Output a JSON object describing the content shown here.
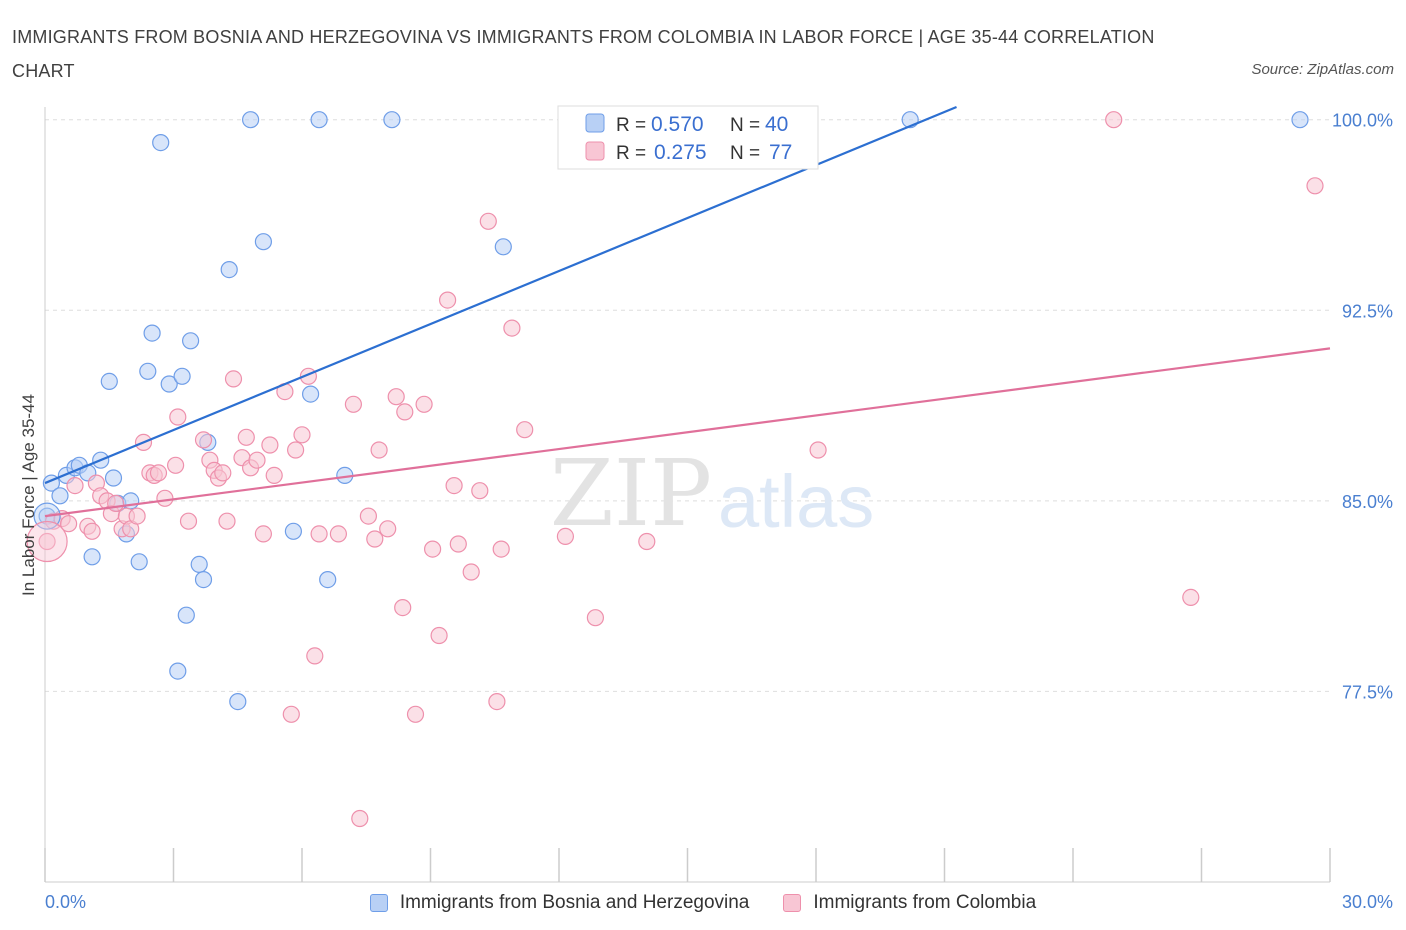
{
  "title": "IMMIGRANTS FROM BOSNIA AND HERZEGOVINA VS IMMIGRANTS FROM COLOMBIA IN LABOR FORCE | AGE 35-44 CORRELATION CHART",
  "source": "Source: ZipAtlas.com",
  "watermark": {
    "zip": "ZIP",
    "atlas": "atlas"
  },
  "legend": {
    "rows": [
      {
        "r_label": "R = ",
        "r_value": "0.570",
        "n_label": "N = ",
        "n_value": "40"
      },
      {
        "r_label": "R = ",
        "r_value": "0.275",
        "n_label": "N = ",
        "n_value": "77"
      }
    ]
  },
  "chart_data": {
    "type": "scatter",
    "title": "IMMIGRANTS FROM BOSNIA AND HERZEGOVINA VS IMMIGRANTS FROM COLOMBIA IN LABOR FORCE | AGE 35-44 CORRELATION CHART",
    "xlabel": "",
    "ylabel": "In Labor Force | Age 35-44",
    "xlim": [
      0,
      30
    ],
    "ylim": [
      70,
      100.5
    ],
    "x_tick_labels": [
      "0.0%",
      "30.0%"
    ],
    "y_ticks": [
      77.5,
      85.0,
      92.5,
      100.0
    ],
    "y_tick_labels": [
      "77.5%",
      "85.0%",
      "92.5%",
      "100.0%"
    ],
    "grid": true,
    "legend_position": "bottom",
    "series": [
      {
        "name": "Immigrants from Bosnia and Herzegovina",
        "color": "#6f9ee8",
        "fill": "#b8d0f5",
        "trendline": {
          "x": [
            0.0,
            22.0
          ],
          "y": [
            85.7,
            101.0
          ],
          "color": "#2c6fd1"
        },
        "points": [
          [
            0.05,
            84.4
          ],
          [
            0.15,
            85.7
          ],
          [
            0.35,
            85.2
          ],
          [
            0.5,
            86.0
          ],
          [
            0.7,
            86.3
          ],
          [
            0.8,
            86.4
          ],
          [
            1.0,
            86.1
          ],
          [
            1.1,
            82.8
          ],
          [
            1.3,
            86.6
          ],
          [
            1.5,
            89.7
          ],
          [
            1.6,
            85.9
          ],
          [
            1.7,
            84.9
          ],
          [
            1.9,
            83.7
          ],
          [
            2.0,
            85.0
          ],
          [
            2.2,
            82.6
          ],
          [
            2.4,
            90.1
          ],
          [
            2.5,
            91.6
          ],
          [
            2.7,
            99.1
          ],
          [
            2.9,
            89.6
          ],
          [
            3.1,
            78.3
          ],
          [
            3.2,
            89.9
          ],
          [
            3.3,
            80.5
          ],
          [
            3.4,
            91.3
          ],
          [
            3.6,
            82.5
          ],
          [
            3.7,
            81.9
          ],
          [
            3.8,
            87.3
          ],
          [
            4.3,
            94.1
          ],
          [
            4.5,
            77.1
          ],
          [
            4.8,
            100.0
          ],
          [
            5.1,
            95.2
          ],
          [
            5.8,
            83.8
          ],
          [
            6.2,
            89.2
          ],
          [
            6.4,
            100.0
          ],
          [
            6.6,
            81.9
          ],
          [
            7.0,
            86.0
          ],
          [
            8.1,
            100.0
          ],
          [
            10.7,
            95.0
          ],
          [
            15.5,
            100.0
          ],
          [
            20.2,
            100.0
          ],
          [
            29.3,
            100.0
          ]
        ]
      },
      {
        "name": "Immigrants from Colombia",
        "color": "#ee90ac",
        "fill": "#f8c6d4",
        "trendline": {
          "x": [
            0.0,
            30.0
          ],
          "y": [
            84.4,
            91.0
          ],
          "color": "#e0709a"
        },
        "points": [
          [
            0.05,
            83.4
          ],
          [
            0.2,
            84.2
          ],
          [
            0.4,
            84.3
          ],
          [
            0.55,
            84.1
          ],
          [
            0.7,
            85.6
          ],
          [
            1.0,
            84.0
          ],
          [
            1.1,
            83.8
          ],
          [
            1.2,
            85.7
          ],
          [
            1.3,
            85.2
          ],
          [
            1.45,
            85.0
          ],
          [
            1.55,
            84.5
          ],
          [
            1.65,
            84.9
          ],
          [
            1.8,
            83.9
          ],
          [
            1.9,
            84.4
          ],
          [
            2.0,
            83.9
          ],
          [
            2.15,
            84.4
          ],
          [
            2.3,
            87.3
          ],
          [
            2.45,
            86.1
          ],
          [
            2.55,
            86.0
          ],
          [
            2.65,
            86.1
          ],
          [
            2.8,
            85.1
          ],
          [
            3.05,
            86.4
          ],
          [
            3.1,
            88.3
          ],
          [
            3.35,
            84.2
          ],
          [
            3.7,
            87.4
          ],
          [
            3.85,
            86.6
          ],
          [
            3.95,
            86.2
          ],
          [
            4.05,
            85.9
          ],
          [
            4.15,
            86.1
          ],
          [
            4.25,
            84.2
          ],
          [
            4.4,
            89.8
          ],
          [
            4.6,
            86.7
          ],
          [
            4.7,
            87.5
          ],
          [
            4.8,
            86.3
          ],
          [
            4.95,
            86.6
          ],
          [
            5.1,
            83.7
          ],
          [
            5.25,
            87.2
          ],
          [
            5.35,
            86.0
          ],
          [
            5.6,
            89.3
          ],
          [
            5.75,
            76.6
          ],
          [
            5.85,
            87.0
          ],
          [
            6.0,
            87.6
          ],
          [
            6.15,
            89.9
          ],
          [
            6.3,
            78.9
          ],
          [
            6.4,
            83.7
          ],
          [
            6.85,
            83.7
          ],
          [
            7.2,
            88.8
          ],
          [
            7.35,
            72.5
          ],
          [
            7.55,
            84.4
          ],
          [
            7.7,
            83.5
          ],
          [
            7.8,
            87.0
          ],
          [
            8.0,
            83.9
          ],
          [
            8.2,
            89.1
          ],
          [
            8.35,
            80.8
          ],
          [
            8.4,
            88.5
          ],
          [
            8.65,
            76.6
          ],
          [
            8.85,
            88.8
          ],
          [
            9.05,
            83.1
          ],
          [
            9.2,
            79.7
          ],
          [
            9.4,
            92.9
          ],
          [
            9.55,
            85.6
          ],
          [
            9.65,
            83.3
          ],
          [
            9.95,
            82.2
          ],
          [
            10.15,
            85.4
          ],
          [
            10.35,
            96.0
          ],
          [
            10.55,
            77.1
          ],
          [
            10.65,
            83.1
          ],
          [
            10.9,
            91.8
          ],
          [
            11.2,
            87.8
          ],
          [
            12.15,
            83.6
          ],
          [
            12.85,
            80.4
          ],
          [
            14.05,
            100.0
          ],
          [
            14.05,
            83.4
          ],
          [
            18.05,
            87.0
          ],
          [
            24.95,
            100.0
          ],
          [
            26.75,
            81.2
          ],
          [
            29.65,
            97.4
          ]
        ]
      }
    ]
  }
}
